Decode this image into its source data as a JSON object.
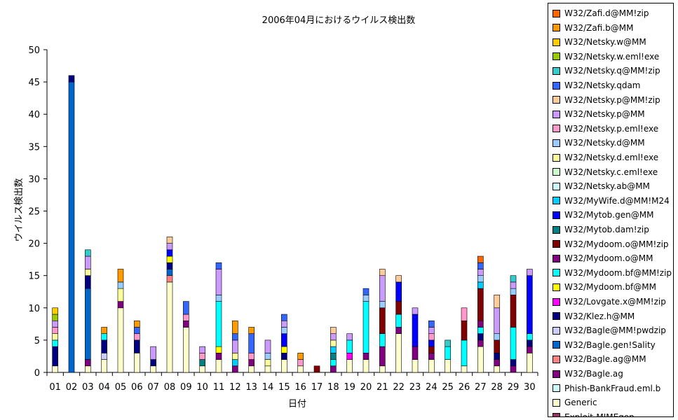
{
  "chart_data": {
    "type": "bar",
    "stacked": true,
    "title": "2006年04月におけるウイルス検出数",
    "xlabel": "日付",
    "ylabel": "ウイルス検出数",
    "ylim": [
      0,
      50
    ],
    "yticks": [
      0,
      5,
      10,
      15,
      20,
      25,
      30,
      35,
      40,
      45,
      50
    ],
    "grid": false,
    "legend_position": "right",
    "categories": [
      "01",
      "02",
      "03",
      "04",
      "05",
      "06",
      "07",
      "08",
      "09",
      "10",
      "11",
      "12",
      "13",
      "14",
      "15",
      "16",
      "17",
      "18",
      "19",
      "20",
      "21",
      "22",
      "23",
      "24",
      "25",
      "26",
      "27",
      "28",
      "29",
      "30"
    ],
    "series": [
      {
        "name": "Exploit-MIMEgen",
        "color": "#993366",
        "values": [
          0,
          0,
          0,
          0,
          0,
          0,
          0,
          0,
          0,
          0,
          0,
          0,
          0,
          0,
          0,
          0,
          0,
          0,
          0,
          0,
          0,
          0,
          0,
          0,
          0,
          0,
          0,
          0,
          0,
          0
        ]
      },
      {
        "name": "Generic",
        "color": "#ffffcc",
        "values": [
          1,
          0,
          1,
          2,
          10,
          3,
          1,
          14,
          7,
          1,
          2,
          0,
          1,
          1,
          2,
          1,
          0,
          0,
          2,
          2,
          1,
          6,
          2,
          2,
          2,
          1,
          4,
          1,
          0,
          3
        ]
      },
      {
        "name": "Phish-BankFraud.eml.b",
        "color": "#ccffff",
        "values": [
          0,
          0,
          0,
          0,
          0,
          0,
          0,
          0,
          0,
          0,
          0,
          0,
          0,
          0,
          0,
          0,
          0,
          0,
          0,
          0,
          0,
          0,
          0,
          0,
          0,
          0,
          0,
          0,
          0,
          0
        ]
      },
      {
        "name": "W32/Bagle.ag",
        "color": "#800080",
        "values": [
          0,
          0,
          1,
          0,
          1,
          0,
          0,
          0,
          1,
          0,
          1,
          1,
          1,
          0,
          0,
          0,
          0,
          1,
          0,
          1,
          3,
          1,
          2,
          1,
          0,
          0,
          1,
          1,
          1,
          1
        ]
      },
      {
        "name": "W32/Bagle.ag@MM",
        "color": "#ff8080",
        "values": [
          0,
          0,
          0,
          0,
          0,
          0,
          0,
          1,
          0,
          0,
          0,
          0,
          0,
          0,
          0,
          0,
          0,
          0,
          0,
          0,
          0,
          0,
          0,
          0,
          0,
          0,
          0,
          0,
          0,
          0
        ]
      },
      {
        "name": "W32/Bagle.gen!Sality",
        "color": "#0066cc",
        "values": [
          0,
          45,
          11,
          0,
          0,
          0,
          0,
          1,
          0,
          0,
          0,
          0,
          0,
          0,
          0,
          0,
          0,
          0,
          0,
          0,
          0,
          0,
          0,
          0,
          0,
          0,
          0,
          0,
          0,
          0
        ]
      },
      {
        "name": "W32/Bagle@MM!pwdzip",
        "color": "#ccccff",
        "values": [
          0,
          0,
          0,
          1,
          0,
          0,
          0,
          0,
          0,
          0,
          0,
          0,
          0,
          0,
          0,
          0,
          0,
          0,
          0,
          0,
          0,
          0,
          0,
          0,
          0,
          0,
          0,
          0,
          0,
          0
        ]
      },
      {
        "name": "W32/Klez.h@MM",
        "color": "#000080",
        "values": [
          3,
          1,
          2,
          2,
          0,
          2,
          1,
          1,
          0,
          0,
          0,
          0,
          0,
          0,
          1,
          0,
          0,
          0,
          0,
          0,
          0,
          0,
          0,
          0,
          0,
          0,
          1,
          1,
          1,
          1
        ]
      },
      {
        "name": "W32/Lovgate.x@MM!zip",
        "color": "#ff00ff",
        "values": [
          0,
          0,
          0,
          0,
          0,
          0,
          0,
          0,
          0,
          0,
          0,
          0,
          0,
          0,
          0,
          0,
          0,
          0,
          1,
          0,
          0,
          0,
          0,
          0,
          0,
          0,
          0,
          0,
          0,
          0
        ]
      },
      {
        "name": "W32/Mydoom.bf@MM",
        "color": "#ffff00",
        "values": [
          0,
          0,
          0,
          0,
          0,
          0,
          0,
          1,
          0,
          0,
          1,
          0,
          0,
          0,
          1,
          0,
          0,
          0,
          0,
          0,
          0,
          0,
          0,
          0,
          0,
          0,
          0,
          0,
          0,
          0
        ]
      },
      {
        "name": "W32/Mydoom.bf@MM!zip",
        "color": "#00ffff",
        "values": [
          1,
          0,
          0,
          1,
          0,
          0,
          0,
          0,
          0,
          0,
          7,
          0,
          0,
          0,
          0,
          0,
          0,
          1,
          2,
          8,
          2,
          2,
          0,
          0,
          2,
          4,
          1,
          0,
          5,
          1
        ]
      },
      {
        "name": "W32/Mydoom.o@MM",
        "color": "#800080",
        "values": [
          0,
          0,
          0,
          0,
          0,
          0,
          0,
          0,
          0,
          0,
          0,
          0,
          0,
          0,
          0,
          0,
          0,
          0,
          0,
          0,
          0,
          0,
          0,
          0,
          0,
          0,
          1,
          0,
          0,
          0
        ]
      },
      {
        "name": "W32/Mydoom.o@MM!zip",
        "color": "#800000",
        "values": [
          0,
          0,
          0,
          0,
          0,
          0,
          0,
          0,
          0,
          0,
          0,
          0,
          0,
          0,
          0,
          0,
          1,
          0,
          0,
          0,
          4,
          2,
          0,
          1,
          0,
          3,
          5,
          2,
          5,
          0
        ]
      },
      {
        "name": "W32/Mytob.dam!zip",
        "color": "#008080",
        "values": [
          0,
          0,
          0,
          0,
          0,
          0,
          0,
          0,
          0,
          1,
          0,
          0,
          0,
          0,
          0,
          0,
          0,
          1,
          0,
          0,
          0,
          0,
          0,
          0,
          0,
          0,
          0,
          0,
          0,
          0
        ]
      },
      {
        "name": "W32/Mytob.gen@MM",
        "color": "#0000ff",
        "values": [
          0,
          0,
          0,
          0,
          0,
          0,
          0,
          1,
          0,
          0,
          0,
          0,
          0,
          0,
          2,
          0,
          0,
          0,
          0,
          0,
          0,
          3,
          5,
          1,
          0,
          0,
          0,
          0,
          0,
          9
        ]
      },
      {
        "name": "W32/MyWife.d@MM!M24",
        "color": "#00ccff",
        "values": [
          0,
          0,
          0,
          0,
          0,
          0,
          0,
          0,
          0,
          0,
          0,
          1,
          0,
          0,
          0,
          0,
          0,
          1,
          0,
          0,
          0,
          0,
          0,
          0,
          0,
          0,
          1,
          0,
          0,
          0
        ]
      },
      {
        "name": "W32/Netsky.ab@MM",
        "color": "#ccffff",
        "values": [
          0,
          0,
          0,
          0,
          0,
          0,
          0,
          0,
          0,
          0,
          0,
          0,
          0,
          0,
          0,
          0,
          0,
          0,
          0,
          0,
          0,
          0,
          0,
          0,
          0,
          0,
          0,
          0,
          0,
          0
        ]
      },
      {
        "name": "W32/Netsky.c.eml!exe",
        "color": "#ccffcc",
        "values": [
          0,
          0,
          0,
          0,
          0,
          0,
          0,
          0,
          0,
          0,
          0,
          0,
          0,
          0,
          0,
          0,
          0,
          0,
          0,
          0,
          0,
          0,
          0,
          0,
          0,
          0,
          0,
          0,
          0,
          0
        ]
      },
      {
        "name": "W32/Netsky.d.eml!exe",
        "color": "#ffff99",
        "values": [
          1,
          0,
          1,
          0,
          2,
          0,
          0,
          0,
          0,
          0,
          0,
          1,
          0,
          1,
          0,
          0,
          0,
          1,
          0,
          0,
          0,
          0,
          0,
          0,
          0,
          0,
          0,
          0,
          0,
          0
        ]
      },
      {
        "name": "W32/Netsky.d@MM",
        "color": "#99ccff",
        "values": [
          0,
          0,
          0,
          0,
          1,
          0,
          0,
          0,
          0,
          0,
          1,
          0,
          0,
          1,
          1,
          0,
          0,
          0,
          0,
          1,
          1,
          0,
          0,
          0,
          0,
          0,
          1,
          1,
          1,
          0
        ]
      },
      {
        "name": "W32/Netsky.p.eml!exe",
        "color": "#ff99cc",
        "values": [
          1,
          0,
          0,
          0,
          0,
          1,
          0,
          0,
          1,
          1,
          0,
          0,
          1,
          0,
          0,
          1,
          0,
          0,
          0,
          0,
          0,
          0,
          0,
          1,
          0,
          2,
          0,
          0,
          0,
          0
        ]
      },
      {
        "name": "W32/Netsky.p@MM",
        "color": "#cc99ff",
        "values": [
          1,
          0,
          2,
          0,
          0,
          0,
          2,
          1,
          0,
          1,
          4,
          2,
          0,
          2,
          1,
          0,
          0,
          1,
          1,
          0,
          4,
          0,
          1,
          1,
          0,
          0,
          1,
          4,
          1,
          1
        ]
      },
      {
        "name": "W32/Netsky.p@MM!zip",
        "color": "#ffcc99",
        "values": [
          0,
          0,
          0,
          0,
          0,
          0,
          0,
          1,
          0,
          0,
          0,
          0,
          0,
          0,
          0,
          0,
          0,
          1,
          0,
          0,
          1,
          1,
          0,
          0,
          0,
          0,
          0,
          2,
          0,
          0
        ]
      },
      {
        "name": "W32/Netsky.qdam",
        "color": "#3366ff",
        "values": [
          0,
          0,
          0,
          0,
          0,
          1,
          0,
          0,
          2,
          0,
          1,
          1,
          3,
          0,
          1,
          0,
          0,
          0,
          0,
          1,
          0,
          0,
          0,
          1,
          0,
          0,
          1,
          0,
          0,
          0
        ]
      },
      {
        "name": "W32/Netsky.q@MM!zip",
        "color": "#33cccc",
        "values": [
          0,
          0,
          1,
          0,
          0,
          0,
          0,
          0,
          0,
          0,
          0,
          0,
          0,
          0,
          0,
          0,
          0,
          0,
          0,
          0,
          0,
          0,
          0,
          0,
          1,
          0,
          0,
          0,
          1,
          0
        ]
      },
      {
        "name": "W32/Netsky.w.eml!exe",
        "color": "#99cc00",
        "values": [
          1,
          0,
          0,
          0,
          0,
          0,
          0,
          0,
          0,
          0,
          0,
          0,
          0,
          0,
          0,
          0,
          0,
          0,
          0,
          0,
          0,
          0,
          0,
          0,
          0,
          0,
          0,
          0,
          0,
          0
        ]
      },
      {
        "name": "W32/Netsky.w@MM",
        "color": "#ffcc00",
        "values": [
          1,
          0,
          0,
          0,
          0,
          0,
          0,
          0,
          0,
          0,
          0,
          0,
          0,
          0,
          0,
          0,
          0,
          0,
          0,
          0,
          0,
          0,
          0,
          0,
          0,
          0,
          0,
          0,
          0,
          0
        ]
      },
      {
        "name": "W32/Zafi.b@MM",
        "color": "#ff9900",
        "values": [
          0,
          0,
          0,
          1,
          2,
          1,
          0,
          0,
          0,
          0,
          0,
          2,
          1,
          0,
          0,
          1,
          0,
          0,
          0,
          0,
          0,
          0,
          0,
          0,
          0,
          0,
          0,
          0,
          0,
          0
        ]
      },
      {
        "name": "W32/Zafi.d@MM!zip",
        "color": "#ff6600",
        "values": [
          0,
          0,
          0,
          0,
          0,
          0,
          0,
          0,
          0,
          0,
          0,
          0,
          0,
          0,
          0,
          0,
          0,
          0,
          0,
          0,
          0,
          0,
          0,
          0,
          0,
          0,
          1,
          0,
          0,
          0
        ]
      }
    ]
  }
}
